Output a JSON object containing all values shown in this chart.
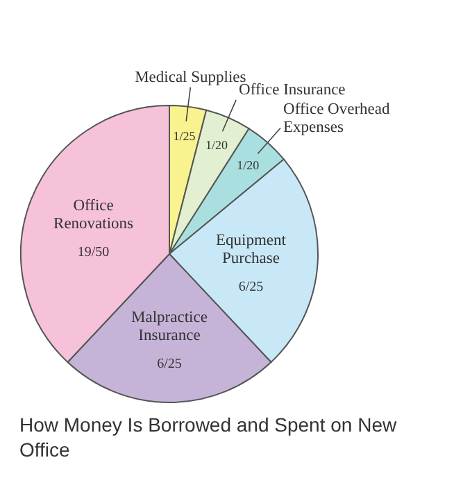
{
  "chart_data": {
    "type": "pie",
    "title": "How Money Is Borrowed and Spent on New Office",
    "categories": [
      "Medical Supplies",
      "Office Insurance",
      "Office Overhead Expenses",
      "Equipment Purchase",
      "Malpractice Insurance",
      "Office Renovations"
    ],
    "values": [
      4,
      5,
      5,
      24,
      24,
      38
    ],
    "colors": [
      "#f8f28f",
      "#e2efd0",
      "#aadfe0",
      "#c8e8f8",
      "#c6b4d8",
      "#f5c2d9"
    ],
    "value_labels": [
      "1/25",
      "1/20",
      "1/20",
      "6/25",
      "6/25",
      "19/50"
    ]
  }
}
